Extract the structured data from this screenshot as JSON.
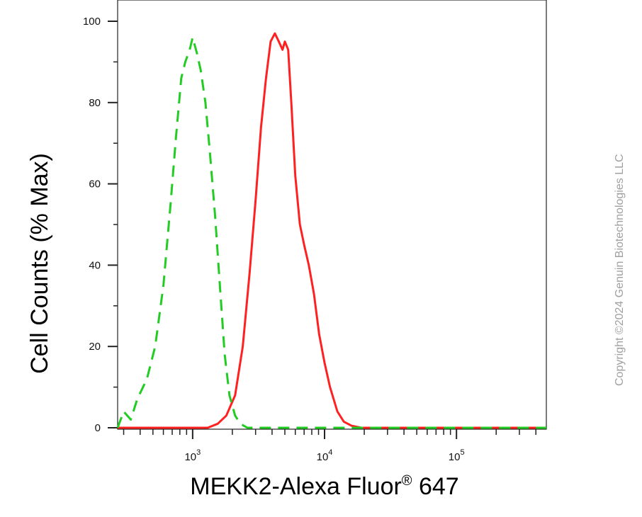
{
  "chart_data": {
    "type": "line",
    "xlabel": "MEKK2-Alexa Fluor® 647",
    "xlabel_main": "MEKK2-Alexa Fluor",
    "xlabel_mark": "®",
    "xlabel_tail": " 647",
    "ylabel": "Cell Counts (% Max)",
    "x_scale": "log",
    "xlim": [
      270,
      480000
    ],
    "ylim": [
      0,
      100
    ],
    "y_ticks": [
      0,
      20,
      40,
      60,
      80,
      100
    ],
    "x_ticks": [
      {
        "value": 1000,
        "base": "10",
        "exp": "3"
      },
      {
        "value": 10000,
        "base": "10",
        "exp": "4"
      },
      {
        "value": 100000,
        "base": "10",
        "exp": "5"
      }
    ],
    "grid": false,
    "series": [
      {
        "style": "solid",
        "color": "#ff2020",
        "x": [
          270,
          1000,
          1300,
          1550,
          1800,
          2100,
          2400,
          2700,
          3000,
          3300,
          3600,
          3900,
          4200,
          4500,
          4800,
          5000,
          5300,
          5600,
          6000,
          6500,
          7000,
          7600,
          8300,
          9100,
          10000,
          11000,
          12500,
          14000,
          16000,
          19000,
          25000,
          50000,
          100000,
          480000
        ],
        "y": [
          0,
          0,
          0,
          1,
          3,
          8,
          20,
          38,
          56,
          74,
          86,
          95,
          97,
          95,
          93,
          95,
          93,
          80,
          62,
          50,
          45,
          40,
          33,
          23,
          16,
          10,
          4,
          1.5,
          0.5,
          0,
          0,
          0,
          0,
          0
        ]
      },
      {
        "style": "dashed",
        "color": "#22cc22",
        "x": [
          270,
          300,
          340,
          380,
          450,
          520,
          600,
          680,
          750,
          820,
          880,
          950,
          1000,
          1080,
          1150,
          1250,
          1350,
          1480,
          1600,
          1750,
          1900,
          2100,
          2300,
          2600,
          3000,
          4000,
          10000,
          100000,
          480000
        ],
        "y": [
          0,
          4,
          2,
          7,
          12,
          20,
          35,
          55,
          72,
          86,
          90,
          93,
          96,
          92,
          88,
          80,
          68,
          52,
          36,
          18,
          8,
          3,
          1,
          0,
          0,
          0,
          0,
          0,
          0
        ]
      }
    ]
  },
  "watermark": "Copyright ©2024 Genuin Biotechnologies LLC"
}
